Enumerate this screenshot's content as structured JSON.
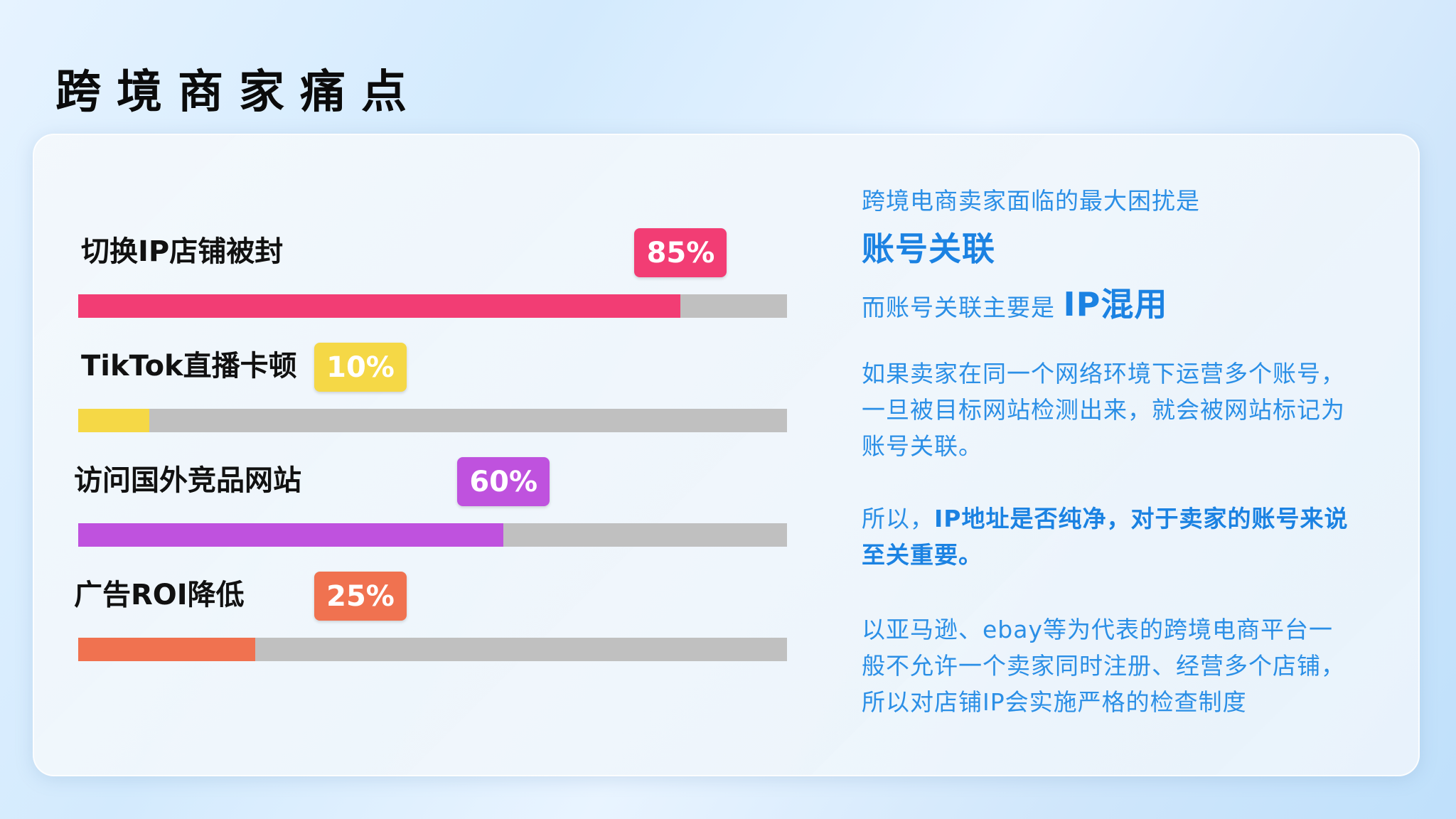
{
  "title": "跨境商家痛点",
  "chart_data": {
    "type": "bar",
    "orientation": "horizontal",
    "categories": [
      "切换IP店铺被封",
      "TikTok直播卡顿",
      "访问国外竞品网站",
      "广告ROI降低"
    ],
    "values": [
      85,
      10,
      60,
      25
    ],
    "value_labels": [
      "85%",
      "10%",
      "60%",
      "25%"
    ],
    "colors": [
      "#f23d74",
      "#f5d846",
      "#bf52de",
      "#f07250"
    ],
    "track_color": "#c0c0c0",
    "ylim": [
      0,
      100
    ]
  },
  "text": {
    "l1": "跨境电商卖家面临的最大困扰是",
    "l2": "账号关联",
    "l3a": "而账号关联主要是 ",
    "l3b": "IP混用",
    "p1": [
      "如果卖家在同一个网络环境下运营多个账号，",
      "一旦被目标网站检测出来，就会被网站标记为",
      "账号关联。"
    ],
    "p2a": "所以，",
    "p2b": "IP地址是否纯净，对于卖家的账号来说",
    "p2c": "至关重要。",
    "p3": [
      "以亚马逊、ebay等为代表的跨境电商平台一",
      "般不允许一个卖家同时注册、经营多个店铺，",
      "所以对店铺IP会实施严格的检查制度"
    ]
  }
}
